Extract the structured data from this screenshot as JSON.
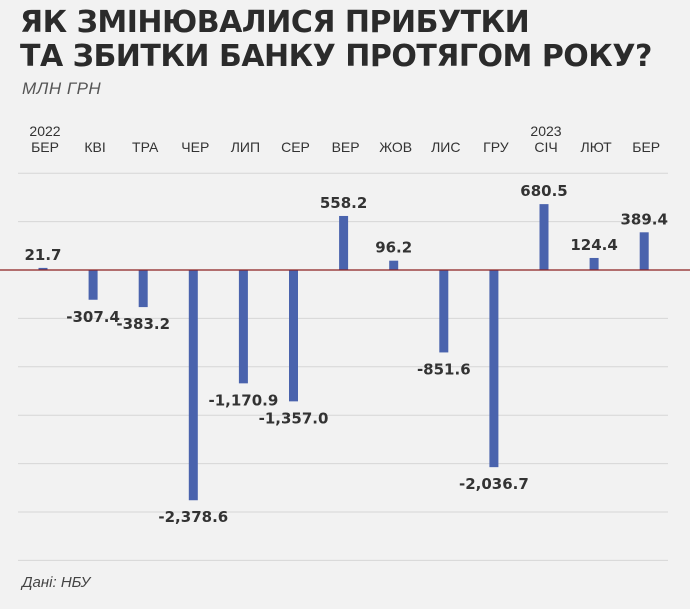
{
  "header": {
    "title_line1": "ЯК ЗМІНЮВАЛИСЯ ПРИБУТКИ",
    "title_line2": "ТА ЗБИТКИ БАНКУ ПРОТЯГОМ РОКУ?",
    "subtitle": "МЛН ГРН"
  },
  "footer": {
    "source": "Дані: НБУ"
  },
  "colors": {
    "bar": "#4a63ad",
    "zero_line": "#8b1f1f",
    "grid": "#d6d6d6",
    "background": "#f2f2f2"
  },
  "chart_data": {
    "type": "bar",
    "title": "ЯК ЗМІНЮВАЛИСЯ ПРИБУТКИ ТА ЗБИТКИ БАНКУ ПРОТЯГОМ РОКУ?",
    "ylabel": "МЛН ГРН",
    "xlabel": "",
    "categories": [
      "БЕР",
      "КВІ",
      "ТРА",
      "ЧЕР",
      "ЛИП",
      "СЕР",
      "ВЕР",
      "ЖОВ",
      "ЛИС",
      "ГРУ",
      "СІЧ",
      "ЛЮТ",
      "БЕР"
    ],
    "year_labels": [
      "2022",
      "",
      "",
      "",
      "",
      "",
      "",
      "",
      "",
      "",
      "2023",
      "",
      ""
    ],
    "values": [
      21.7,
      -307.4,
      -383.2,
      -2378.6,
      -1170.9,
      -1357.0,
      558.2,
      96.2,
      -851.6,
      -2036.7,
      680.5,
      124.4,
      389.4
    ],
    "value_labels": [
      "21.7",
      "-307.4",
      "-383.2",
      "-2,378.6",
      "-1,170.9",
      "-1,357.0",
      "558.2",
      "96.2",
      "-851.6",
      "-2,036.7",
      "680.5",
      "124.4",
      "389.4"
    ],
    "ylim": [
      -3000,
      1000
    ],
    "grid": true,
    "legend": "none"
  }
}
